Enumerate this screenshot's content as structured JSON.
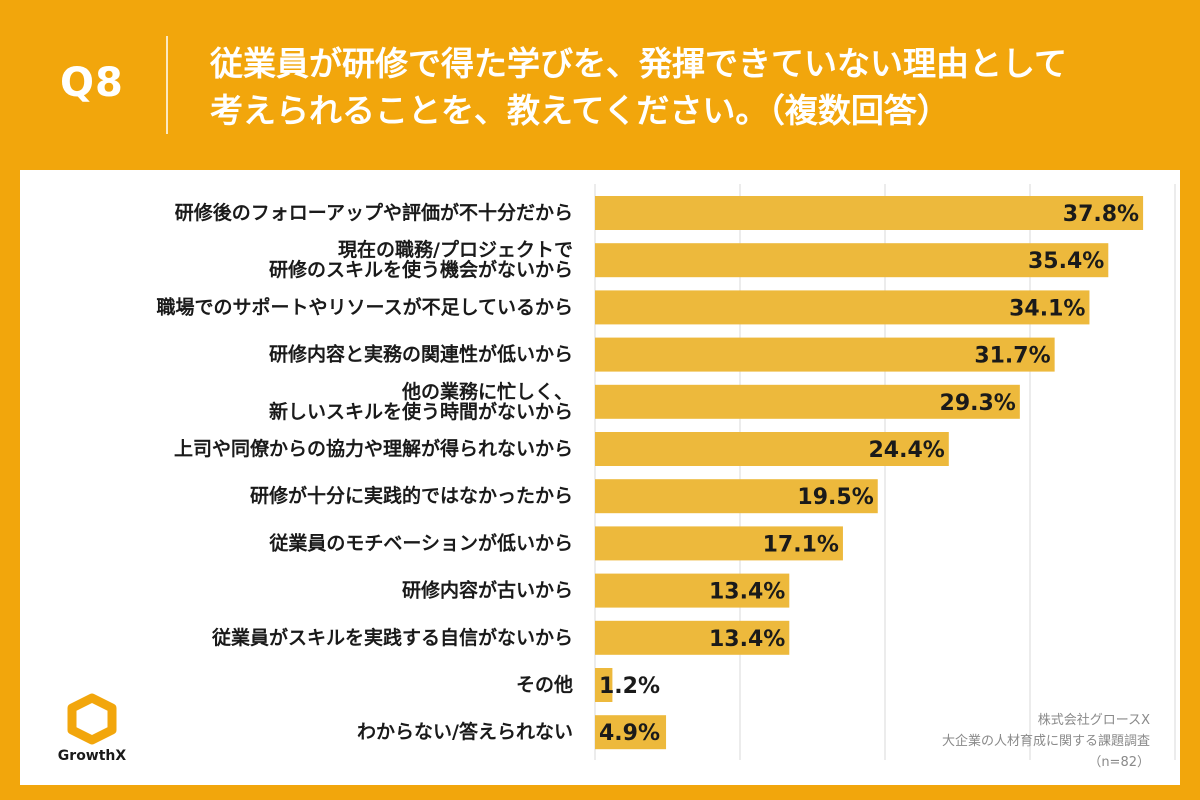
{
  "header": {
    "question_label": "Q8",
    "title_line1": "従業員が研修で得た学びを、発揮できていない理由として",
    "title_line2": "考えられることを、教えてください。（複数回答）"
  },
  "colors": {
    "background": "#F2A60C",
    "bar": "#EDB93C",
    "panel": "#FFFFFF",
    "gridline": "#D9D9D9",
    "text": "#1A1A1A"
  },
  "chart_data": {
    "type": "bar",
    "orientation": "horizontal",
    "categories": [
      [
        "研修後のフォローアップや評価が不十分だから"
      ],
      [
        "現在の職務/プロジェクトで",
        "研修のスキルを使う機会がないから"
      ],
      [
        "職場でのサポートやリソースが不足しているから"
      ],
      [
        "研修内容と実務の関連性が低いから"
      ],
      [
        "他の業務に忙しく、",
        "新しいスキルを使う時間がないから"
      ],
      [
        "上司や同僚からの協力や理解が得られないから"
      ],
      [
        "研修が十分に実践的ではなかったから"
      ],
      [
        "従業員のモチベーションが低いから"
      ],
      [
        "研修内容が古いから"
      ],
      [
        "従業員がスキルを実践する自信がないから"
      ],
      [
        "その他"
      ],
      [
        "わからない/答えられない"
      ]
    ],
    "values": [
      37.8,
      35.4,
      34.1,
      31.7,
      29.3,
      24.4,
      19.5,
      17.1,
      13.4,
      13.4,
      1.2,
      4.9
    ],
    "value_labels": [
      "37.8%",
      "35.4%",
      "34.1%",
      "31.7%",
      "29.3%",
      "24.4%",
      "19.5%",
      "17.1%",
      "13.4%",
      "13.4%",
      "1.2%",
      "4.9%"
    ],
    "xlim": [
      0,
      40
    ],
    "grid_step": 10,
    "unit": "%"
  },
  "logo": {
    "text": "GrowthX"
  },
  "source": {
    "line1": "株式会社グロースX",
    "line2": "大企業の人材育成に関する課題調査",
    "line3": "（n=82）"
  }
}
